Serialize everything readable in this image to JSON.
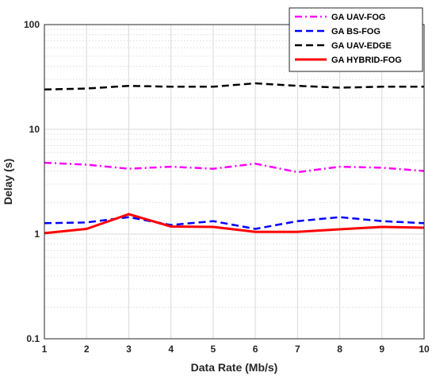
{
  "chart_data": {
    "type": "line",
    "xlabel": "Data Rate (Mb/s)",
    "ylabel": "Delay (s)",
    "y_scale": "log",
    "x": [
      1,
      2,
      3,
      4,
      5,
      6,
      7,
      8,
      9,
      10
    ],
    "xlim": [
      1,
      10
    ],
    "ylim": [
      0.1,
      100
    ],
    "x_ticks": [
      "1",
      "2",
      "3",
      "4",
      "5",
      "6",
      "7",
      "8",
      "9",
      "10"
    ],
    "y_ticks": [
      {
        "value": 0.1,
        "label": "0.1"
      },
      {
        "value": 1,
        "label": "1"
      },
      {
        "value": 10,
        "label": "10"
      },
      {
        "value": 100,
        "label": "100"
      }
    ],
    "grid": true,
    "legend_position": "top-right",
    "series": [
      {
        "name": "GA UAV-FOG",
        "color": "#ff00ff",
        "dash": "dash-dot",
        "values": [
          4.8,
          4.6,
          4.2,
          4.4,
          4.2,
          4.7,
          3.9,
          4.4,
          4.3,
          4.0
        ]
      },
      {
        "name": "GA BS-FOG",
        "color": "#0000ff",
        "dash": "dashed",
        "values": [
          1.27,
          1.29,
          1.45,
          1.22,
          1.33,
          1.12,
          1.33,
          1.45,
          1.33,
          1.27
        ]
      },
      {
        "name": "GA UAV-EDGE",
        "color": "#000000",
        "dash": "dashed",
        "values": [
          24,
          24.5,
          26,
          25.5,
          25.5,
          27.5,
          26,
          25,
          25.5,
          25.5
        ]
      },
      {
        "name": "GA HYBRID-FOG",
        "color": "#ff0000",
        "dash": "solid",
        "values": [
          1.02,
          1.12,
          1.55,
          1.18,
          1.17,
          1.05,
          1.05,
          1.11,
          1.17,
          1.15
        ]
      }
    ]
  }
}
